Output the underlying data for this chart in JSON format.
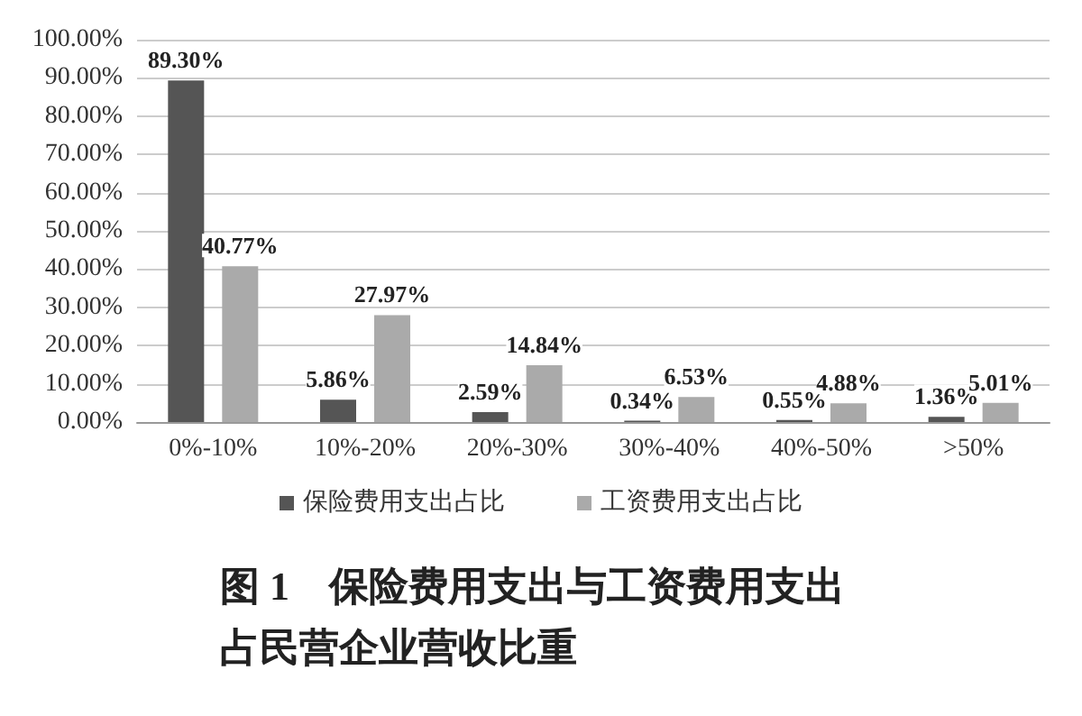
{
  "chart_data": {
    "type": "bar",
    "title": "图 1　保险费用支出与工资费用支出占民营企业营收比重",
    "categories": [
      "0%-10%",
      "10%-20%",
      "20%-30%",
      "30%-40%",
      "40%-50%",
      ">50%"
    ],
    "series": [
      {
        "name": "保险费用支出占比",
        "color": "#555555",
        "values": [
          89.3,
          5.86,
          2.59,
          0.34,
          0.55,
          1.36
        ],
        "value_labels": [
          "89.30%",
          "5.86%",
          "2.59%",
          "0.34%",
          "0.55%",
          "1.36%"
        ]
      },
      {
        "name": "工资费用支出占比",
        "color": "#aaaaaa",
        "values": [
          40.77,
          27.97,
          14.84,
          6.53,
          4.88,
          5.01
        ],
        "value_labels": [
          "40.77%",
          "27.97%",
          "14.84%",
          "6.53%",
          "4.88%",
          "5.01%"
        ]
      }
    ],
    "ylim": [
      0,
      100
    ],
    "yticks": [
      {
        "value": 0,
        "label": "0.00%"
      },
      {
        "value": 10,
        "label": "10.00%"
      },
      {
        "value": 20,
        "label": "20.00%"
      },
      {
        "value": 30,
        "label": "30.00%"
      },
      {
        "value": 40,
        "label": "40.00%"
      },
      {
        "value": 50,
        "label": "50.00%"
      },
      {
        "value": 60,
        "label": "60.00%"
      },
      {
        "value": 70,
        "label": "70.00%"
      },
      {
        "value": 80,
        "label": "80.00%"
      },
      {
        "value": 90,
        "label": "90.00%"
      },
      {
        "value": 100,
        "label": "100.00%"
      }
    ],
    "grid": "y",
    "legend": "bottom"
  }
}
